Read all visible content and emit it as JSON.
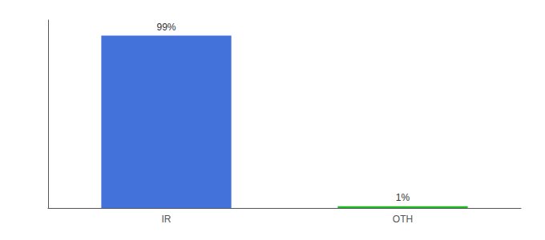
{
  "chart_data": {
    "type": "bar",
    "categories": [
      "IR",
      "OTH"
    ],
    "values": [
      99,
      1
    ],
    "value_labels": [
      "99%",
      "1%"
    ],
    "colors": [
      "#4472db",
      "#22bb22"
    ],
    "ylim": [
      0,
      108
    ],
    "yticks": [],
    "grid": false,
    "data_labels": true,
    "tick_labels": "x"
  }
}
